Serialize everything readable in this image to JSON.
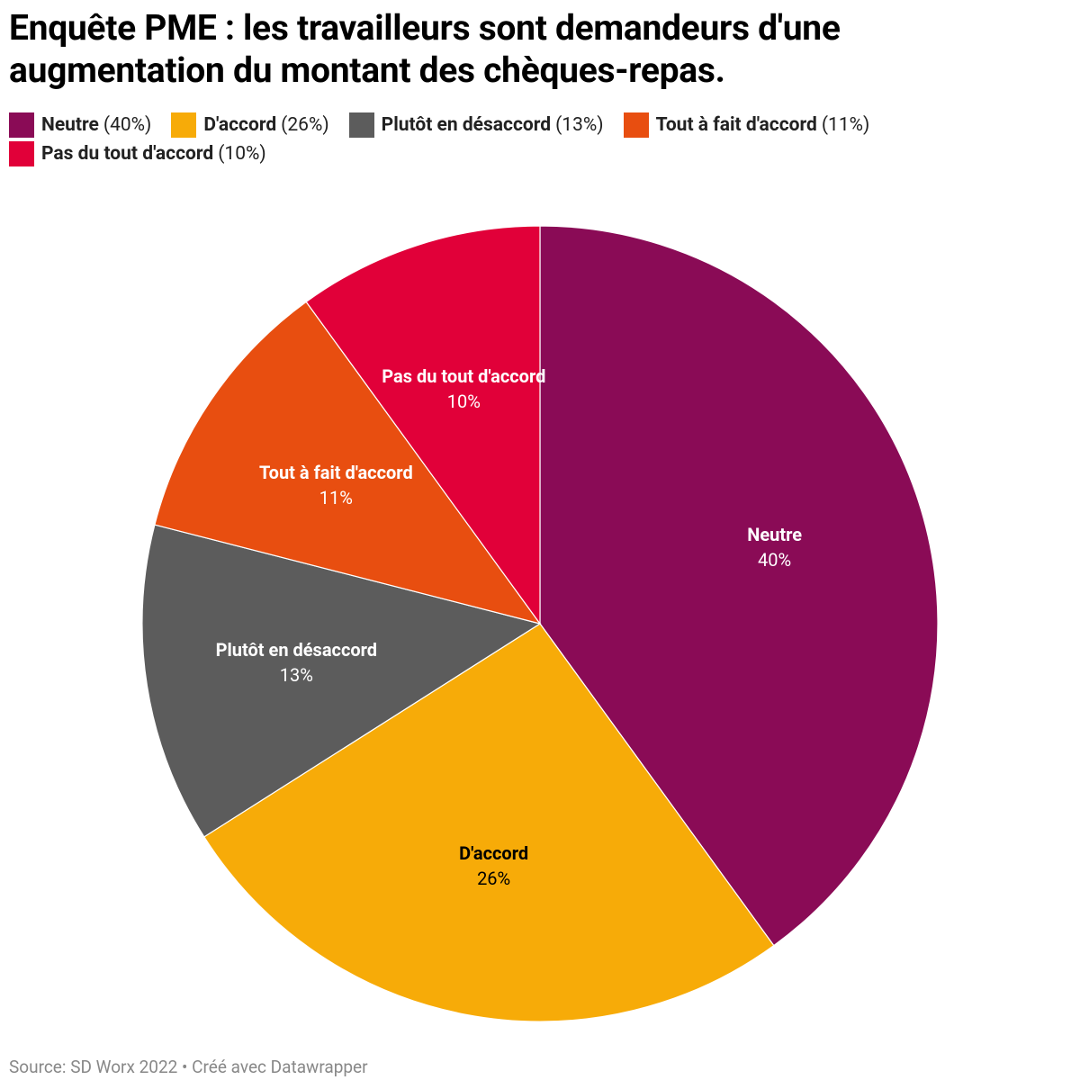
{
  "chart_data": {
    "type": "pie",
    "title": "Enquête PME : les travailleurs sont demandeurs d'une augmentation du montant des chèques-repas.",
    "categories": [
      "Neutre",
      "D'accord",
      "Plutôt en désaccord",
      "Tout à fait d'accord",
      "Pas du tout d'accord"
    ],
    "values": [
      40,
      26,
      13,
      11,
      10
    ],
    "value_labels": [
      "40%",
      "26%",
      "13%",
      "11%",
      "10%"
    ],
    "legend_value_labels": [
      "(40%)",
      "(26%)",
      "(13%)",
      "(11%)",
      "(10%)"
    ],
    "colors": [
      "#8a0b56",
      "#f7ab08",
      "#5c5c5c",
      "#e84e10",
      "#e10039"
    ],
    "source": "Source: SD Worx 2022 • Créé avec Datawrapper"
  }
}
